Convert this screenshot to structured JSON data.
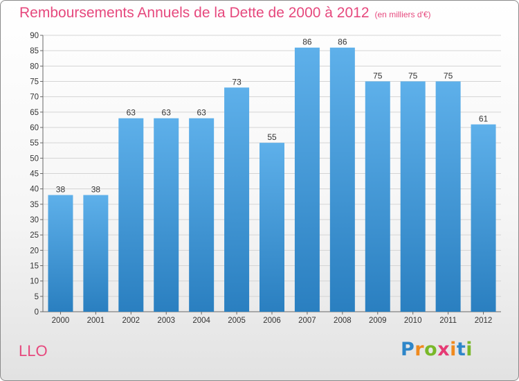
{
  "chart_data": {
    "type": "bar",
    "title": "Remboursements Annuels de la Dette de 2000 à 2012",
    "subtitle": "(en milliers d'€)",
    "categories": [
      "2000",
      "2001",
      "2002",
      "2003",
      "2004",
      "2005",
      "2006",
      "2007",
      "2008",
      "2009",
      "2010",
      "2011",
      "2012"
    ],
    "values": [
      38,
      38,
      63,
      63,
      63,
      73,
      55,
      86,
      86,
      75,
      75,
      75,
      61
    ],
    "ylim": [
      0,
      90
    ],
    "yticks": [
      0,
      5,
      10,
      15,
      20,
      25,
      30,
      35,
      40,
      45,
      50,
      55,
      60,
      65,
      70,
      75,
      80,
      85,
      90
    ],
    "grid": true,
    "bar_color": "#5aabe6"
  },
  "place": "LLO",
  "brand": {
    "letters": [
      "P",
      "r",
      "o",
      "x",
      "i",
      "t",
      "i"
    ],
    "colors": [
      "#2e86c9",
      "#f08a1e",
      "#79b829",
      "#e63a74",
      "#f08a1e",
      "#2e86c9",
      "#79b829"
    ]
  }
}
